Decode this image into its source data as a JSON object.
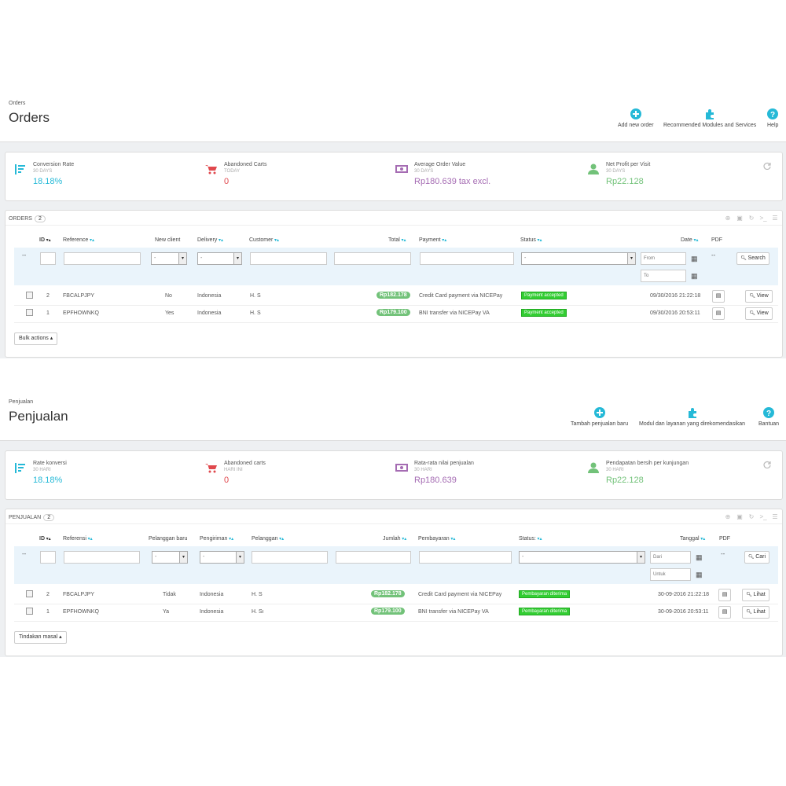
{
  "sections": [
    {
      "breadcrumb": "Orders",
      "title": "Orders",
      "toolbar": {
        "add": "Add new order",
        "modules": "Recommended Modules and Services",
        "help": "Help"
      },
      "kpis": [
        {
          "label": "Conversion Rate",
          "sub": "30 DAYS",
          "value": "18.18%",
          "color": "#25b9d7",
          "icon": "conversion-icon"
        },
        {
          "label": "Abandoned Carts",
          "sub": "TODAY",
          "value": "0",
          "color": "#e0484d",
          "icon": "cart-icon"
        },
        {
          "label": "Average Order Value",
          "sub": "30 DAYS",
          "value": "Rp180.639 tax excl.",
          "color": "#a56cb3",
          "icon": "money-icon"
        },
        {
          "label": "Net Profit per Visit",
          "sub": "30 DAYS",
          "value": "Rp22.128",
          "color": "#72c279",
          "icon": "user-icon"
        }
      ],
      "list_title": "Orders",
      "list_count": "2",
      "columns": {
        "id": "ID",
        "reference": "Reference",
        "new_client": "New client",
        "delivery": "Delivery",
        "customer": "Customer",
        "total": "Total",
        "payment": "Payment",
        "status": "Status",
        "date": "Date",
        "pdf": "PDF"
      },
      "filters": {
        "select_default": "-",
        "from": "From",
        "to": "To",
        "search": "Search",
        "dash": "--"
      },
      "rows": [
        {
          "id": "2",
          "reference": "FBCALPJPY",
          "new_client": "No",
          "delivery": "Indonesia",
          "customer": "H. S",
          "total": "Rp182.178",
          "payment": "Credit Card payment via NICEPay",
          "status": "Payment accepted",
          "date": "09/30/2016 21:22:18",
          "action": "View"
        },
        {
          "id": "1",
          "reference": "EPFHOWNKQ",
          "new_client": "Yes",
          "delivery": "Indonesia",
          "customer": "H. S",
          "total": "Rp179.100",
          "payment": "BNI transfer via NICEPay VA",
          "status": "Payment accepted",
          "date": "09/30/2016 20:53:11",
          "action": "View"
        }
      ],
      "bulk": "Bulk actions"
    },
    {
      "breadcrumb": "Penjualan",
      "title": "Penjualan",
      "toolbar": {
        "add": "Tambah penjualan baru",
        "modules": "Modul dan layanan yang direkomendasikan",
        "help": "Bantuan"
      },
      "kpis": [
        {
          "label": "Rate konversi",
          "sub": "30 HARI",
          "value": "18.18%",
          "color": "#25b9d7",
          "icon": "conversion-icon"
        },
        {
          "label": "Abandoned carts",
          "sub": "HARI INI",
          "value": "0",
          "color": "#e0484d",
          "icon": "cart-icon"
        },
        {
          "label": "Rata-rata nilai penjualan",
          "sub": "30 HARI",
          "value": "Rp180.639",
          "color": "#a56cb3",
          "icon": "money-icon"
        },
        {
          "label": "Pendapatan bersih per kunjungan",
          "sub": "30 HARI",
          "value": "Rp22.128",
          "color": "#72c279",
          "icon": "user-icon"
        }
      ],
      "list_title": "Penjualan",
      "list_count": "2",
      "columns": {
        "id": "ID",
        "reference": "Referensi",
        "new_client": "Pelanggan baru",
        "delivery": "Pengiriman",
        "customer": "Pelanggan",
        "total": "Jumlah",
        "payment": "Pembayaran",
        "status": "Status:",
        "date": "Tanggal",
        "pdf": "PDF"
      },
      "filters": {
        "select_default": "-",
        "from": "Dari",
        "to": "Untuk",
        "search": "Cari",
        "dash": "--"
      },
      "rows": [
        {
          "id": "2",
          "reference": "FBCALPJPY",
          "new_client": "Tidak",
          "delivery": "Indonesia",
          "customer": "H. S",
          "total": "Rp182.178",
          "payment": "Credit Card payment via NICEPay",
          "status": "Pembayaran diterima",
          "date": "30-09-2016 21:22:18",
          "action": "Lihat"
        },
        {
          "id": "1",
          "reference": "EPFHOWNKQ",
          "new_client": "Ya",
          "delivery": "Indonesia",
          "customer": "H. Sı",
          "total": "Rp179.100",
          "payment": "BNI transfer via NICEPay VA",
          "status": "Pembayaran diterima",
          "date": "30-09-2016 20:53:11",
          "action": "Lihat"
        }
      ],
      "bulk": "Tindakan masal"
    }
  ]
}
